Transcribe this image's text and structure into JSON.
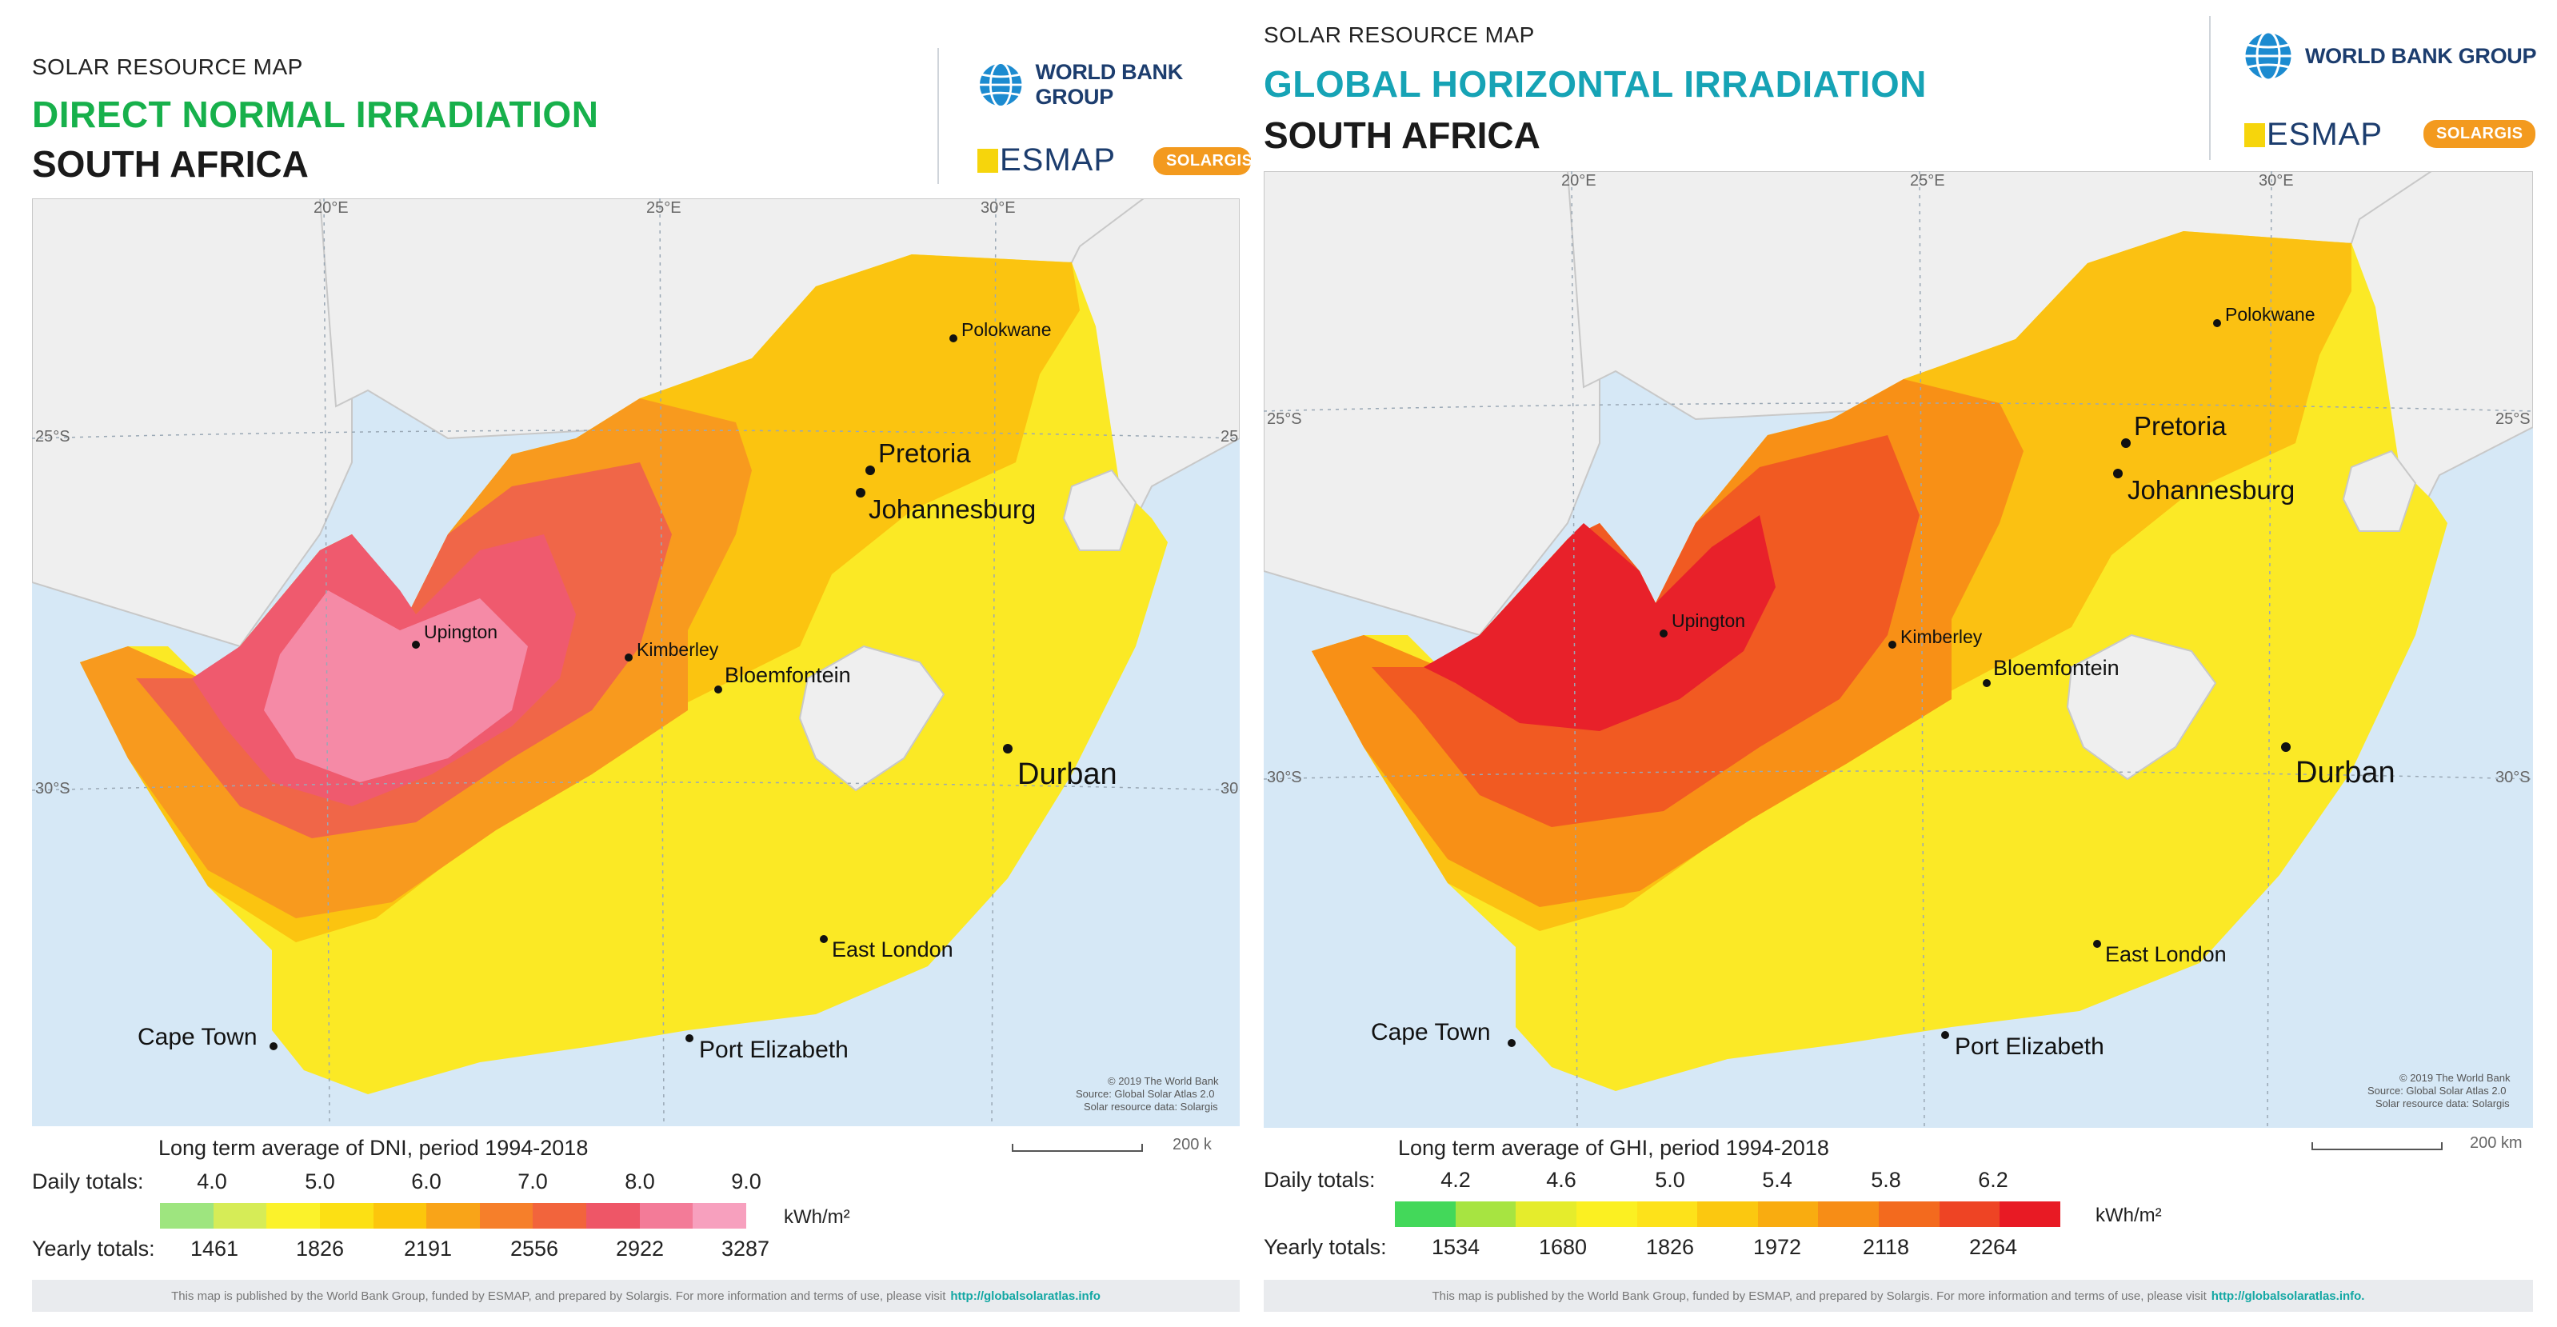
{
  "left": {
    "header_small": "SOLAR RESOURCE MAP",
    "title": "DIRECT NORMAL IRRADIATION",
    "title_color": "#17b04b",
    "country": "SOUTH AFRICA",
    "logos": {
      "wbg": "WORLD BANK GROUP",
      "esmap": "ESMAP",
      "solargis": "SOLARGIS"
    },
    "coords": {
      "lon20": "20°E",
      "lon25": "25°E",
      "lon30": "30°E",
      "lat25w": "25°S",
      "lat25e": "25",
      "lat30w": "30°S",
      "lat30e": "30"
    },
    "cities": {
      "polokwane": "Polokwane",
      "pretoria": "Pretoria",
      "johannesburg": "Johannesburg",
      "upington": "Upington",
      "kimberley": "Kimberley",
      "bloemfontein": "Bloemfontein",
      "durban": "Durban",
      "east_london": "East London",
      "cape_town": "Cape Town",
      "port_elizabeth": "Port Elizabeth"
    },
    "credits": {
      "line1": "© 2019 The World Bank",
      "line2": "Source: Global Solar Atlas 2.0",
      "line3": "Solar resource data: Solargis"
    },
    "scale_label": "200 k",
    "legend": {
      "caption": "Long term average of DNI, period 1994-2018",
      "daily_label": "Daily totals:",
      "daily_ticks": [
        "4.0",
        "5.0",
        "6.0",
        "7.0",
        "8.0",
        "9.0"
      ],
      "yearly_label": "Yearly totals:",
      "yearly_ticks": [
        "1461",
        "1826",
        "2191",
        "2556",
        "2922",
        "3287"
      ],
      "unit": "kWh/m²",
      "colors": [
        "#9ee57f",
        "#d6ec57",
        "#fbf22b",
        "#fce014",
        "#fcc60c",
        "#f9a418",
        "#f67f2a",
        "#f2643c",
        "#ee5667",
        "#f37b98",
        "#f7a0be"
      ]
    },
    "footer": {
      "text": "This map is published by the World Bank Group, funded by ESMAP, and prepared by Solargis. For more information and terms of use, please visit",
      "link": "http://globalsolaratlas.info"
    }
  },
  "right": {
    "header_small": "SOLAR RESOURCE MAP",
    "title": "GLOBAL HORIZONTAL IRRADIATION",
    "title_color": "#16a3b5",
    "country": "SOUTH AFRICA",
    "logos": {
      "wbg": "WORLD BANK GROUP",
      "esmap": "ESMAP",
      "solargis": "SOLARGIS"
    },
    "coords": {
      "lon20": "20°E",
      "lon25": "25°E",
      "lon30": "30°E",
      "lat25w": "25°S",
      "lat25e": "25°S",
      "lat30w": "30°S",
      "lat30e": "30°S"
    },
    "cities": {
      "polokwane": "Polokwane",
      "pretoria": "Pretoria",
      "johannesburg": "Johannesburg",
      "upington": "Upington",
      "kimberley": "Kimberley",
      "bloemfontein": "Bloemfontein",
      "durban": "Durban",
      "east_london": "East London",
      "cape_town": "Cape Town",
      "port_elizabeth": "Port Elizabeth"
    },
    "credits": {
      "line1": "© 2019 The World Bank",
      "line2": "Source: Global Solar Atlas 2.0",
      "line3": "Solar resource data: Solargis"
    },
    "scale_label": "200 km",
    "legend": {
      "caption": "Long term average of GHI, period 1994-2018",
      "daily_label": "Daily totals:",
      "daily_ticks": [
        "4.2",
        "4.6",
        "5.0",
        "5.4",
        "5.8",
        "6.2"
      ],
      "yearly_label": "Yearly totals:",
      "yearly_ticks": [
        "1534",
        "1680",
        "1826",
        "1972",
        "2118",
        "2264"
      ],
      "unit": "kWh/m²",
      "colors": [
        "#43d85a",
        "#a7e441",
        "#e5ec2c",
        "#fbf022",
        "#fde21a",
        "#fbc810",
        "#f9ac10",
        "#f78d16",
        "#f36a1e",
        "#ee4424",
        "#e81a24"
      ]
    },
    "footer": {
      "text": "This map is published by the World Bank Group, funded by ESMAP, and prepared by Solargis. For more information and terms of use, please visit",
      "link": "http://globalsolaratlas.info."
    }
  }
}
